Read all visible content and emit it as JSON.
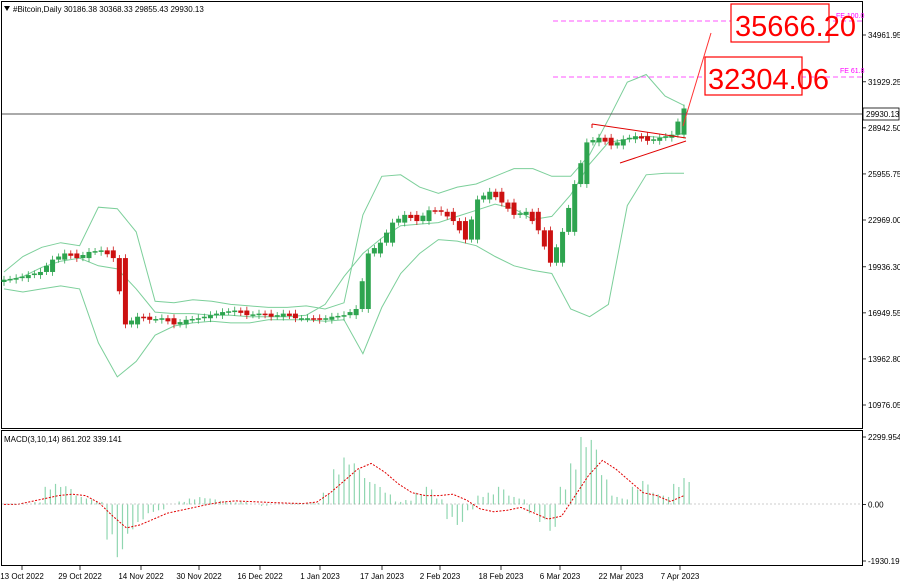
{
  "header": {
    "symbol_line": "#Bitcoin,Daily  30186.38 30368.33 29855.43 29930.13",
    "macd_line": "MACD(3,10,14) 861.202 339.141"
  },
  "targets": {
    "upper": "35666.20",
    "lower": "32304.06"
  },
  "fibo": {
    "upper_label": "FE 100.0",
    "lower_label": "FE 61.8"
  },
  "current_price_tag": "29930.13",
  "colors": {
    "bull_candle": "#2ea44f",
    "bear_candle": "#cc1111",
    "bollinger": "#7ccf9a",
    "macd_hist": "#8fd6b0",
    "macd_signal": "#e00000",
    "fibo": "#ff55ff",
    "target_text": "#ff0000",
    "triangle": "#e00000",
    "grid_frame": "#000000"
  },
  "chart_data": [
    {
      "type": "candlestick",
      "title": "#Bitcoin,Daily",
      "ohlc_last": {
        "open": 30186.38,
        "high": 30368.33,
        "low": 29855.43,
        "close": 29930.13
      },
      "y_ticks": [
        "34961.95",
        "31929.25",
        "28942.50",
        "25955.75",
        "22969.00",
        "19936.30",
        "16949.55",
        "13962.80",
        "10976.05"
      ],
      "y_tick_values": [
        34961.95,
        31929.25,
        28942.5,
        25955.75,
        22969.0,
        19936.3,
        16949.55,
        13962.8,
        10976.05
      ],
      "x_ticks": [
        "13 Oct 2022",
        "29 Oct 2022",
        "14 Nov 2022",
        "30 Nov 2022",
        "16 Dec 2022",
        "1 Jan 2023",
        "17 Jan 2023",
        "2 Feb 2023",
        "18 Feb 2023",
        "6 Mar 2023",
        "22 Mar 2023",
        "7 Apr 2023"
      ],
      "ylim": [
        9400,
        37400
      ],
      "price_line": 29930.13,
      "fibo_levels": [
        35666.2,
        32304.06
      ],
      "closes_sampled": [
        19100,
        19200,
        19400,
        19600,
        20400,
        20800,
        20500,
        20900,
        21000,
        20500,
        16200,
        16700,
        16500,
        16600,
        16200,
        16500,
        16600,
        16800,
        17000,
        17100,
        16800,
        16900,
        16700,
        16900,
        16600,
        16600,
        16500,
        16700,
        16800,
        17200,
        20800,
        21500,
        22800,
        23300,
        22900,
        23600,
        23500,
        22900,
        21700,
        24300,
        24800,
        24100,
        23300,
        23500,
        22300,
        20200,
        22200,
        25300,
        28000,
        28300,
        27800,
        28200,
        28400,
        28100,
        28300,
        28500,
        30200
      ],
      "bollinger": {
        "upper": [
          19600,
          20600,
          21200,
          21500,
          21300,
          23800,
          23700,
          22200,
          17700,
          17600,
          17800,
          17700,
          17500,
          17400,
          17300,
          17300,
          17400,
          17200,
          17600,
          23300,
          25800,
          25900,
          25100,
          24700,
          25100,
          25300,
          25800,
          26300,
          26300,
          25800,
          25800,
          27200,
          29500,
          31900,
          32400,
          31000,
          30400
        ],
        "middle": [
          19000,
          19300,
          19900,
          20300,
          20500,
          20000,
          19800,
          18500,
          17000,
          16900,
          16900,
          16800,
          16800,
          16700,
          16700,
          16700,
          16800,
          17500,
          19300,
          20800,
          21800,
          22600,
          22700,
          22800,
          23200,
          23600,
          24000,
          23700,
          23000,
          23200,
          24600,
          26600,
          28000,
          28200,
          28400,
          28300,
          28600
        ],
        "lower": [
          18500,
          18300,
          18500,
          18700,
          18500,
          15000,
          12800,
          13800,
          15500,
          16100,
          16300,
          16400,
          16300,
          16300,
          16500,
          16500,
          16500,
          16400,
          16500,
          14300,
          17300,
          19500,
          20800,
          21700,
          21600,
          21300,
          20600,
          20000,
          19700,
          19500,
          17200,
          16700,
          17500,
          23900,
          25900,
          26000,
          26000
        ]
      }
    },
    {
      "type": "bar",
      "title": "MACD(3,10,14)",
      "y_ticks": [
        "2299.954",
        "0.00",
        "-1930.191"
      ],
      "y_tick_values": [
        2299.954,
        0,
        -1930.191
      ],
      "ylim": [
        -1930.191,
        2299.954
      ],
      "series": [
        {
          "name": "MACD",
          "value_last": 861.202
        },
        {
          "name": "Signal",
          "value_last": 339.141
        }
      ],
      "histogram_sampled": [
        0,
        20,
        0,
        80,
        600,
        700,
        620,
        300,
        200,
        100,
        -1200,
        -1800,
        -1000,
        -600,
        -300,
        -200,
        0,
        100,
        200,
        250,
        200,
        120,
        80,
        100,
        0,
        -50,
        0,
        0,
        30,
        40,
        60,
        400,
        1200,
        1600,
        1400,
        900,
        700,
        400,
        100,
        150,
        400,
        600,
        200,
        -500,
        -700,
        -200,
        300,
        400,
        600,
        300,
        200,
        -300,
        -600,
        -900,
        600,
        1400,
        2300,
        2200,
        1000,
        300,
        200,
        600,
        800,
        400,
        300,
        700,
        900
      ],
      "signal_sampled": [
        0,
        0,
        100,
        200,
        300,
        350,
        300,
        50,
        -400,
        -800,
        -700,
        -500,
        -300,
        -200,
        -100,
        0,
        80,
        120,
        100,
        80,
        60,
        40,
        30,
        80,
        400,
        800,
        1200,
        1400,
        1100,
        700,
        400,
        300,
        300,
        350,
        150,
        -150,
        -250,
        -200,
        -100,
        -300,
        -500,
        -400,
        300,
        1000,
        1500,
        1200,
        800,
        400,
        300,
        100,
        300
      ]
    }
  ]
}
